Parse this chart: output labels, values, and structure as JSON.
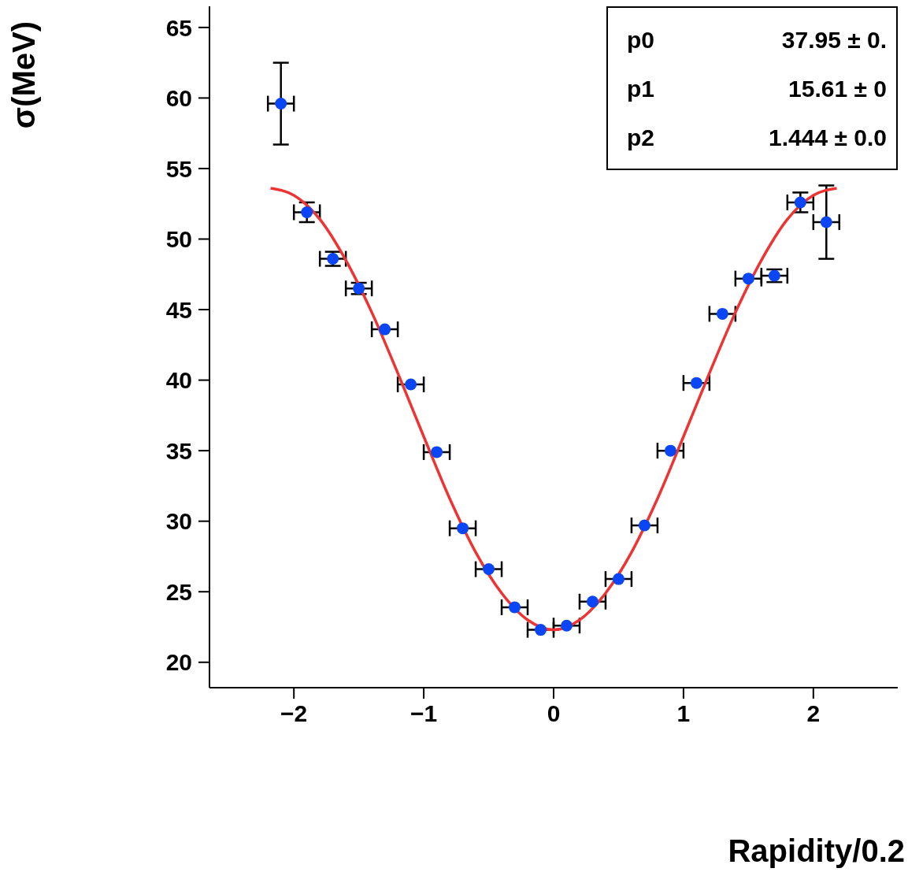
{
  "chart_data": {
    "type": "scatter",
    "xlabel": "Rapidity/0.2",
    "ylabel": "σ(MeV)",
    "xlim": [
      -2.65,
      2.65
    ],
    "xticks": [
      {
        "value": -2,
        "label": "−2"
      },
      {
        "value": -1,
        "label": "−1"
      },
      0,
      1,
      2
    ],
    "ylim": [
      18.2,
      66.5
    ],
    "yticks": [
      20,
      25,
      30,
      35,
      40,
      45,
      50,
      55,
      60,
      65
    ],
    "grid": false,
    "legend": false,
    "marker": "circle",
    "series": [
      {
        "color": "#0a46f5",
        "x": [
          -2.1,
          -1.9,
          -1.7,
          -1.5,
          -1.3,
          -1.1,
          -0.9,
          -0.7,
          -0.5,
          -0.3,
          -0.1,
          0.1,
          0.3,
          0.5,
          0.7,
          0.9,
          1.1,
          1.3,
          1.5,
          1.7,
          1.9,
          2.1
        ],
        "values": [
          59.6,
          51.9,
          48.6,
          46.5,
          43.6,
          39.7,
          34.9,
          29.5,
          26.6,
          23.9,
          22.3,
          22.6,
          24.3,
          25.9,
          29.7,
          35.0,
          39.8,
          44.7,
          47.2,
          47.4,
          52.6,
          51.2
        ],
        "errors": [
          2.9,
          0.7,
          0.5,
          0.4,
          null,
          null,
          null,
          null,
          null,
          null,
          null,
          null,
          null,
          null,
          null,
          null,
          null,
          null,
          null,
          0.45,
          0.7,
          2.6
        ],
        "xerrors": [
          0.1,
          0.1,
          0.1,
          0.1,
          0.1,
          0.1,
          0.1,
          0.1,
          0.1,
          0.1,
          0.1,
          0.1,
          0.1,
          0.1,
          0.1,
          0.1,
          0.1,
          0.1,
          0.1,
          0.1,
          0.1,
          0.1
        ]
      },
      {
        "type": "line",
        "color": "#ee3333",
        "line_style": "solid",
        "marker": "none",
        "x": [
          -2.18,
          -2.0,
          -1.8,
          -1.6,
          -1.4,
          -1.2,
          -1.0,
          -0.8,
          -0.6,
          -0.4,
          -0.2,
          0,
          0.2,
          0.4,
          0.6,
          0.8,
          1.0,
          1.2,
          1.4,
          1.6,
          1.8,
          2.0,
          2.18
        ],
        "values": [
          53.6,
          53.1,
          51.4,
          48.5,
          44.8,
          40.5,
          36.0,
          31.6,
          27.8,
          24.9,
          23.0,
          22.3,
          23.0,
          24.9,
          27.8,
          31.6,
          36.0,
          40.5,
          44.8,
          48.5,
          51.4,
          53.1,
          53.6
        ]
      }
    ],
    "annotations": [
      "p0",
      "37.95 ± 0.",
      "p1",
      "15.61 ± 0",
      "p2",
      "1.444 ± 0.0"
    ]
  }
}
